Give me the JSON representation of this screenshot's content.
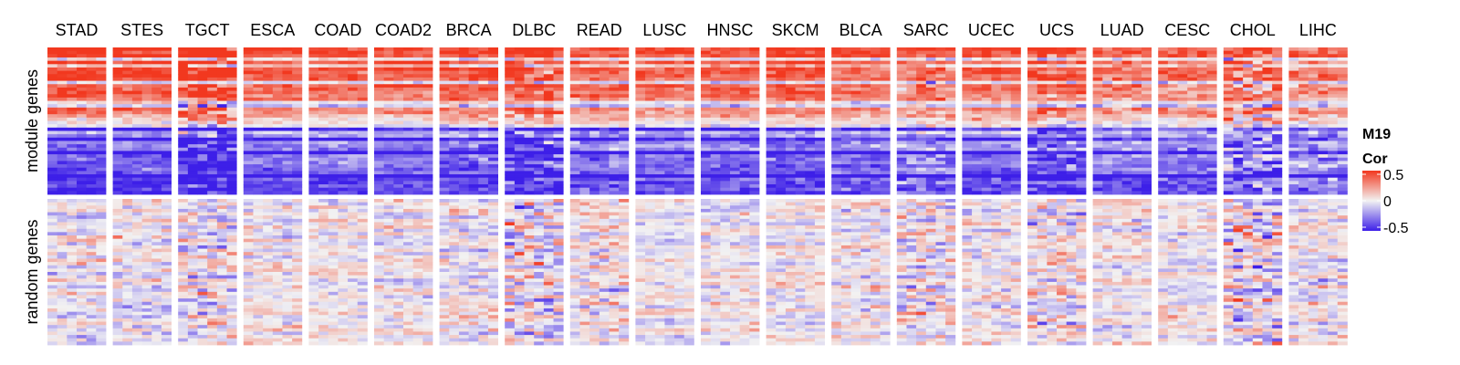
{
  "chart_data": {
    "type": "heatmap",
    "column_groups": [
      "STAD",
      "STES",
      "TGCT",
      "ESCA",
      "COAD",
      "COAD2",
      "BRCA",
      "DLBC",
      "READ",
      "LUSC",
      "HNSC",
      "SKCM",
      "BLCA",
      "SARC",
      "UCEC",
      "UCS",
      "LUAD",
      "CESC",
      "CHOL",
      "LIHC"
    ],
    "row_groups": [
      "module genes",
      "random genes"
    ],
    "legend": {
      "title_lines": [
        "M19",
        "Cor"
      ],
      "ticks": [
        "0.5",
        "0",
        "-0.5"
      ],
      "range": [
        -0.5,
        0.5
      ],
      "colors": {
        "low": "#3D1FE8",
        "mid": "#F2F2F2",
        "high": "#F2381F"
      }
    }
  }
}
